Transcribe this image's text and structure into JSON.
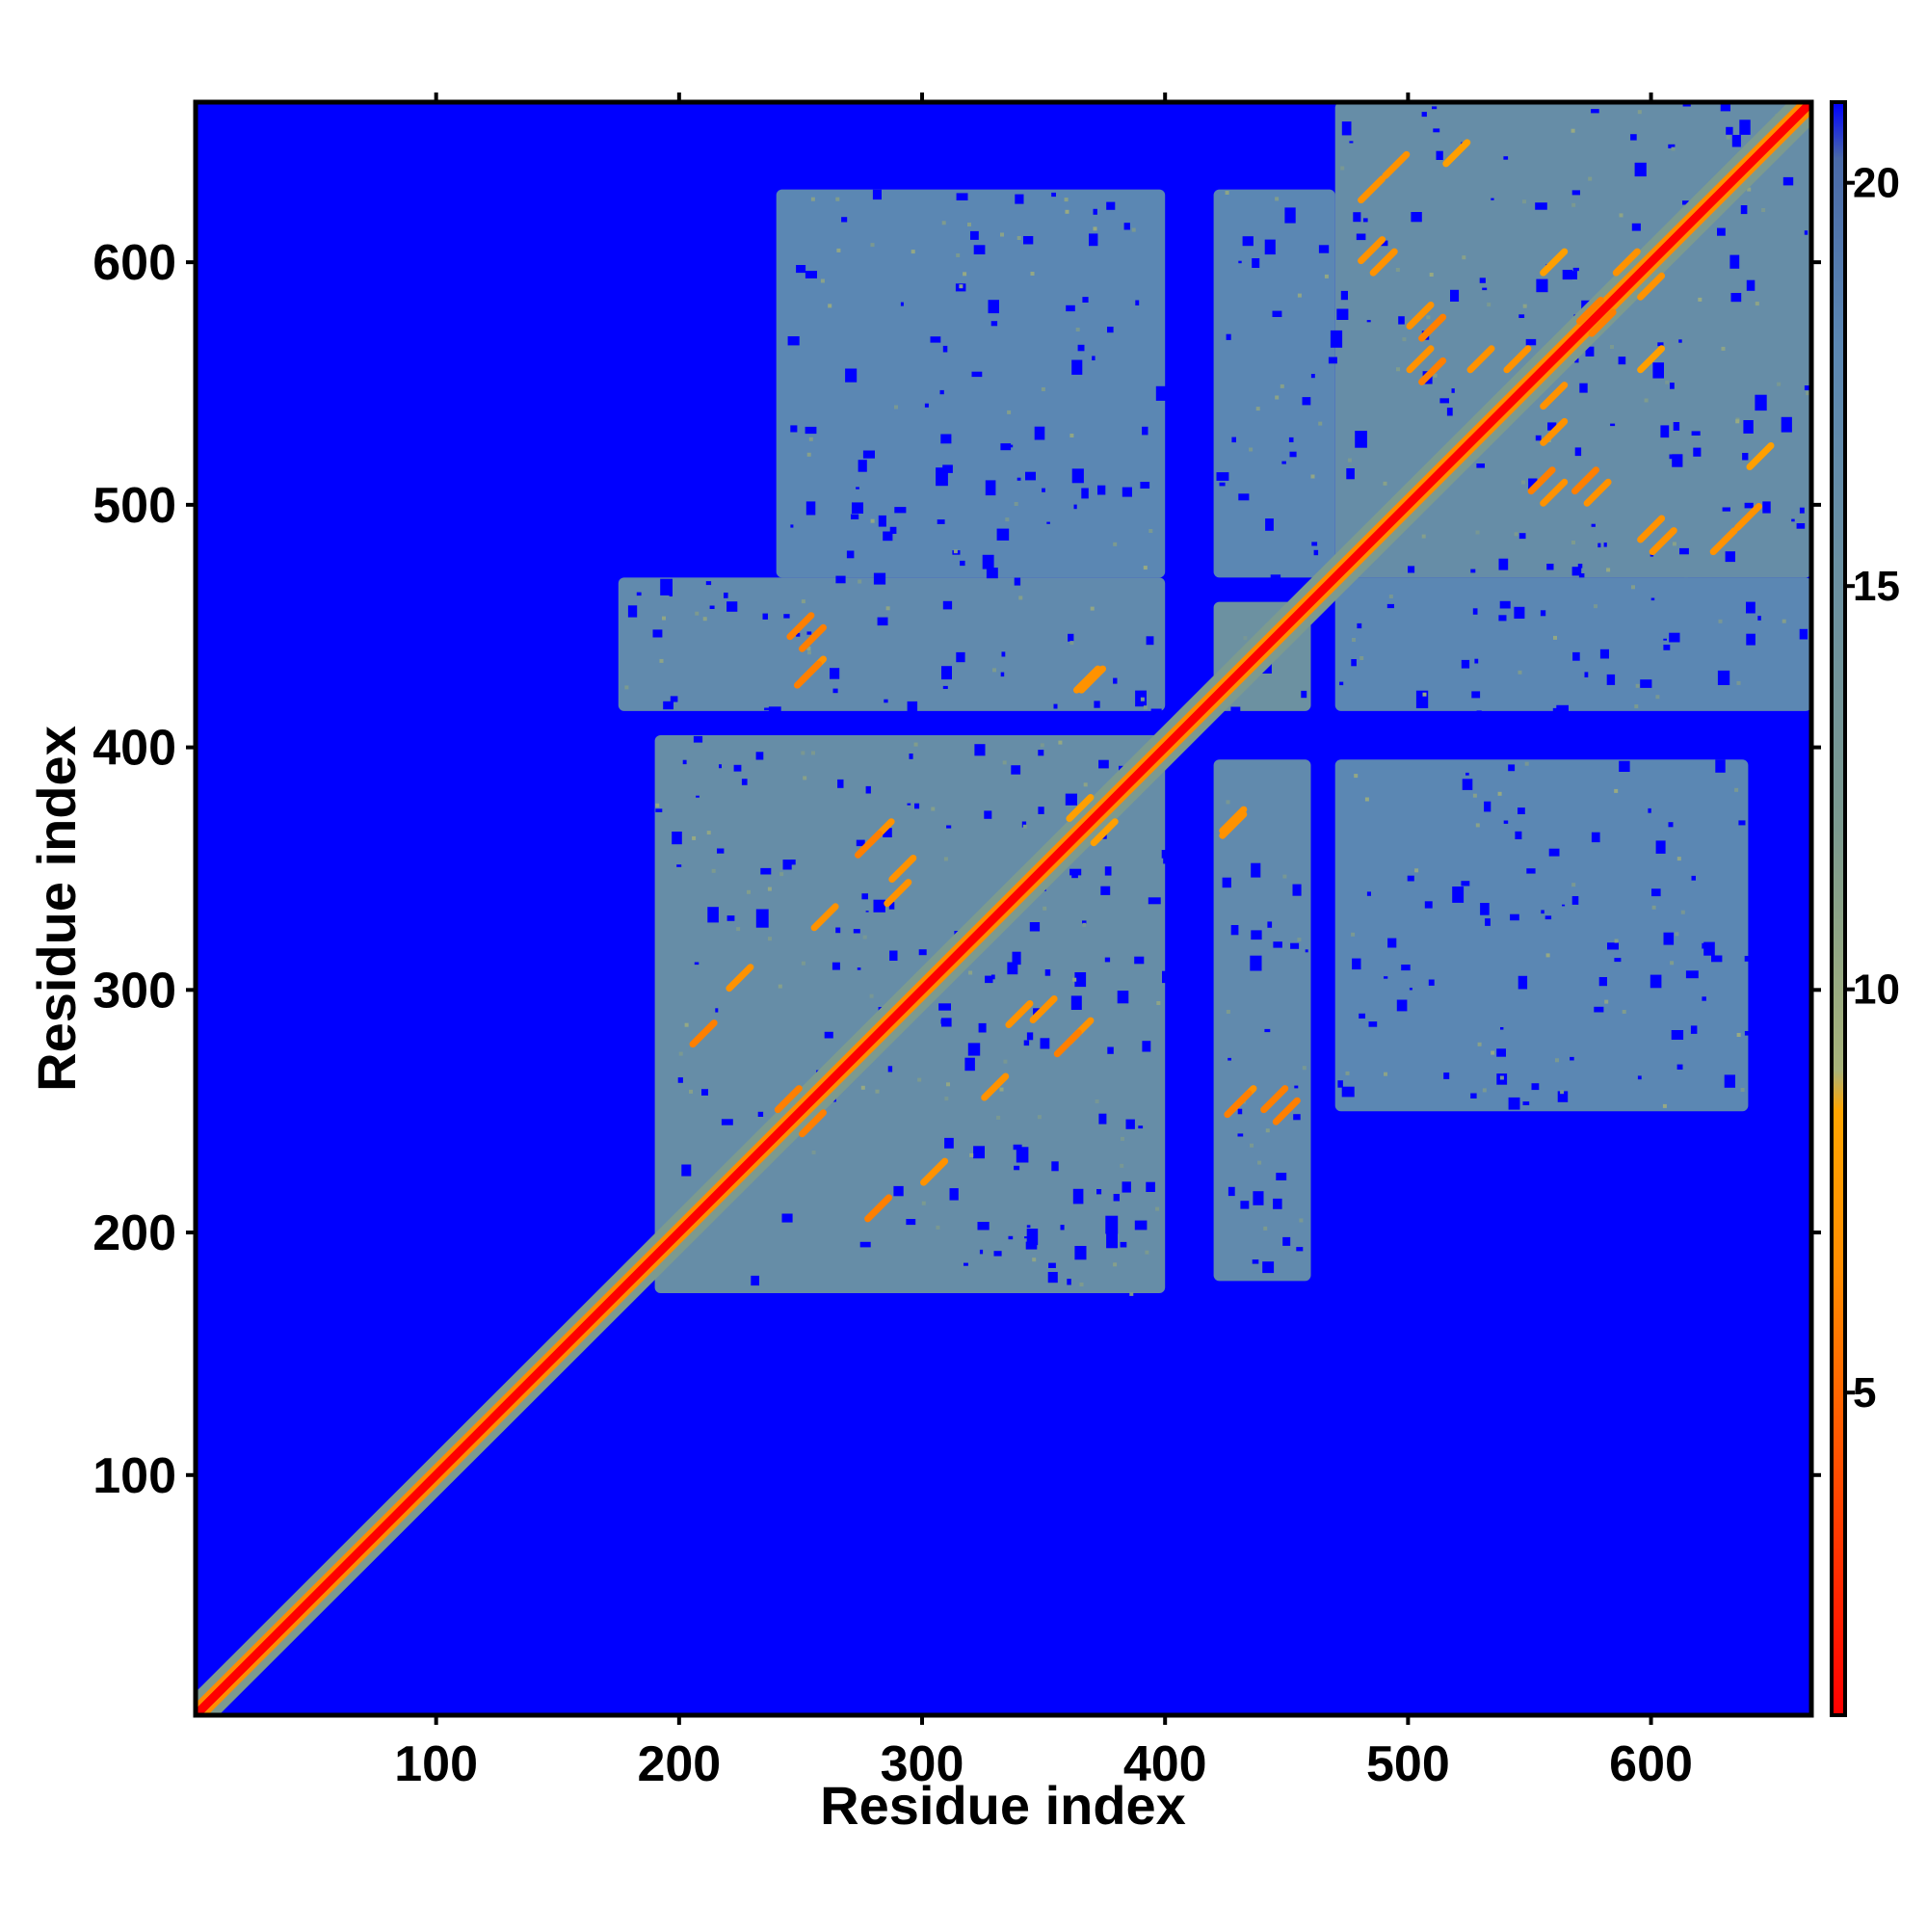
{
  "chart_data": {
    "type": "heatmap",
    "title": "",
    "xlabel": "Residue index",
    "ylabel": "Residue index",
    "xlim": [
      1,
      666
    ],
    "ylim": [
      1,
      666
    ],
    "x_ticks": [
      100,
      200,
      300,
      400,
      500,
      600
    ],
    "y_ticks": [
      100,
      200,
      300,
      400,
      500,
      600
    ],
    "x_tick_labels": [
      "100",
      "200",
      "300",
      "400",
      "500",
      "600"
    ],
    "y_tick_labels": [
      "100",
      "200",
      "300",
      "400",
      "500",
      "600"
    ],
    "colorbar": {
      "range": [
        1,
        21
      ],
      "ticks": [
        5,
        10,
        15,
        20
      ],
      "tick_labels": [
        "5",
        "10",
        "15",
        "20"
      ],
      "stops": [
        {
          "value": 1,
          "color": "#ff0000"
        },
        {
          "value": 4,
          "color": "#ff4d00"
        },
        {
          "value": 6.5,
          "color": "#ff8c00"
        },
        {
          "value": 8.5,
          "color": "#ffa500"
        },
        {
          "value": 9,
          "color": "#a8b37a"
        },
        {
          "value": 12,
          "color": "#7c9a8f"
        },
        {
          "value": 18,
          "color": "#5b87b3"
        },
        {
          "value": 20.3,
          "color": "#4a6aa8"
        },
        {
          "value": 21,
          "color": "#0000ff"
        }
      ]
    },
    "background_value": 21,
    "diagonal_value": 1,
    "cluster_regions": [
      {
        "x": [
          190,
          400
        ],
        "y": [
          175,
          405
        ],
        "value": 16
      },
      {
        "x": [
          470,
          666
        ],
        "y": [
          470,
          666
        ],
        "value": 16
      },
      {
        "x": [
          175,
          400
        ],
        "y": [
          415,
          470
        ],
        "value": 17
      },
      {
        "x": [
          420,
          460
        ],
        "y": [
          415,
          460
        ],
        "value": 15
      },
      {
        "x": [
          420,
          460
        ],
        "y": [
          180,
          395
        ],
        "value": 17
      },
      {
        "x": [
          240,
          400
        ],
        "y": [
          470,
          630
        ],
        "value": 18
      },
      {
        "x": [
          420,
          470
        ],
        "y": [
          470,
          630
        ],
        "value": 18
      },
      {
        "x": [
          470,
          666
        ],
        "y": [
          415,
          470
        ],
        "value": 18
      },
      {
        "x": [
          470,
          640
        ],
        "y": [
          250,
          395
        ],
        "value": 18
      }
    ],
    "contacts": [
      {
        "x": 210,
        "y": 282,
        "value": 6
      },
      {
        "x": 255,
        "y": 245,
        "value": 6
      },
      {
        "x": 283,
        "y": 365,
        "value": 7
      },
      {
        "x": 290,
        "y": 340,
        "value": 7
      },
      {
        "x": 360,
        "y": 278,
        "value": 6
      },
      {
        "x": 350,
        "y": 292,
        "value": 7
      },
      {
        "x": 330,
        "y": 260,
        "value": 7
      },
      {
        "x": 375,
        "y": 365,
        "value": 8
      },
      {
        "x": 225,
        "y": 305,
        "value": 7
      },
      {
        "x": 255,
        "y": 445,
        "value": 6
      },
      {
        "x": 255,
        "y": 432,
        "value": 7
      },
      {
        "x": 370,
        "y": 428,
        "value": 7
      },
      {
        "x": 430,
        "y": 253,
        "value": 6
      },
      {
        "x": 450,
        "y": 250,
        "value": 6
      },
      {
        "x": 428,
        "y": 368,
        "value": 7
      },
      {
        "x": 485,
        "y": 630,
        "value": 7
      },
      {
        "x": 485,
        "y": 605,
        "value": 7
      },
      {
        "x": 510,
        "y": 573,
        "value": 6
      },
      {
        "x": 505,
        "y": 560,
        "value": 7
      },
      {
        "x": 530,
        "y": 560,
        "value": 7
      },
      {
        "x": 545,
        "y": 560,
        "value": 7
      },
      {
        "x": 555,
        "y": 510,
        "value": 6
      },
      {
        "x": 578,
        "y": 505,
        "value": 7
      },
      {
        "x": 600,
        "y": 490,
        "value": 7
      },
      {
        "x": 640,
        "y": 495,
        "value": 7
      },
      {
        "x": 645,
        "y": 520,
        "value": 8
      },
      {
        "x": 600,
        "y": 560,
        "value": 8
      },
      {
        "x": 590,
        "y": 600,
        "value": 7
      },
      {
        "x": 575,
        "y": 580,
        "value": 6
      }
    ]
  }
}
